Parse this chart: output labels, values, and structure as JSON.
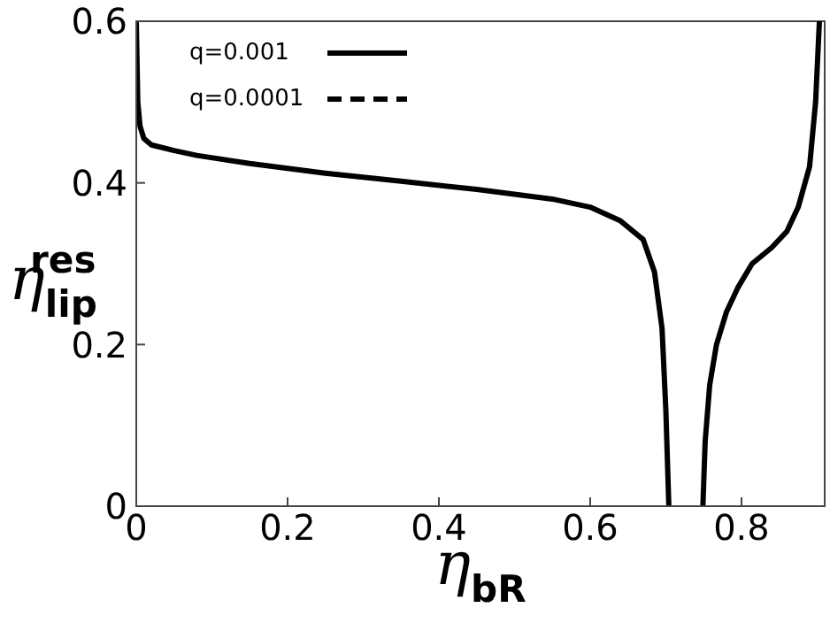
{
  "chart_data": {
    "type": "line",
    "xlabel": "η$_{bR}$",
    "ylabel": "η$_{lip}$$^{res}$",
    "xlim": [
      0,
      0.91
    ],
    "xticks": [
      0,
      0.2,
      0.4,
      0.6,
      0.8
    ],
    "ylim": [
      0,
      0.6
    ],
    "yticks": [
      0,
      0.2,
      0.4,
      0.6
    ],
    "x": [
      0,
      0.002,
      0.005,
      0.01,
      0.02,
      0.05,
      0.08,
      0.15,
      0.25,
      0.35,
      0.45,
      0.55,
      0.6,
      0.64,
      0.67,
      0.685,
      0.695,
      0.7,
      0.704,
      0.72,
      0.749,
      0.752,
      0.758,
      0.767,
      0.78,
      0.795,
      0.814,
      0.84,
      0.86,
      0.875,
      0.89,
      0.898,
      0.903
    ],
    "series": [
      {
        "name": "q=0.001",
        "color": "#000000",
        "line_style": "solid",
        "values": [
          0.6,
          0.5,
          0.47,
          0.455,
          0.447,
          0.44,
          0.434,
          0.424,
          0.412,
          0.402,
          0.392,
          0.38,
          0.37,
          0.353,
          0.33,
          0.29,
          0.22,
          0.12,
          0,
          null,
          0,
          0.08,
          0.15,
          0.2,
          0.24,
          0.27,
          0.3,
          0.32,
          0.34,
          0.37,
          0.42,
          0.5,
          0.6
        ]
      },
      {
        "name": "q=0.0001",
        "color": "#000000",
        "line_style": "dashed",
        "values": [
          null,
          null,
          null,
          null,
          null,
          null,
          null,
          null,
          null,
          null,
          null,
          null,
          null,
          null,
          null,
          null,
          null,
          null,
          null,
          null,
          null,
          null,
          null,
          null,
          null,
          null,
          null,
          null,
          null,
          null,
          null,
          null,
          null
        ]
      }
    ],
    "legend": "top left",
    "grid": false,
    "marker": "none"
  }
}
